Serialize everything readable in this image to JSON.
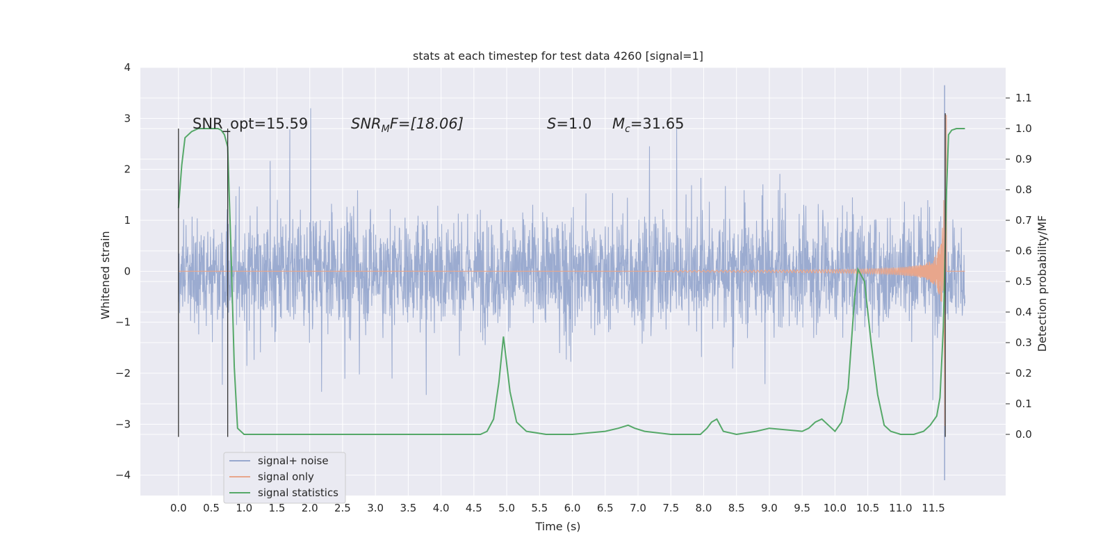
{
  "chart_data": {
    "type": "line",
    "title": "stats at each timestep for test data 4260 [signal=1]",
    "xlabel": "Time (s)",
    "ylabel": "Whitened strain",
    "ylabel_right": "Detection probability/MF",
    "xlim": [
      -0.58,
      12.6
    ],
    "ylim": [
      -4.4,
      4.0
    ],
    "ylim_right": [
      -0.2,
      1.2
    ],
    "x_ticks": [
      "0.0",
      "0.5",
      "1.0",
      "1.5",
      "2.0",
      "2.5",
      "3.0",
      "3.5",
      "4.0",
      "4.5",
      "5.0",
      "5.5",
      "6.0",
      "6.5",
      "7.0",
      "7.5",
      "8.0",
      "8.5",
      "9.0",
      "9.5",
      "10.0",
      "10.5",
      "11.0",
      "11.5"
    ],
    "y_ticks": [
      "-4",
      "-3",
      "-2",
      "-1",
      "0",
      "1",
      "2",
      "3",
      "4"
    ],
    "y_ticks_right": [
      "0.0",
      "0.1",
      "0.2",
      "0.3",
      "0.4",
      "0.5",
      "0.6",
      "0.7",
      "0.8",
      "0.9",
      "1.0",
      "1.1"
    ],
    "grid": true,
    "annotations": {
      "snr_opt": "SNR_opt=15.59",
      "snr_mf_label": "SNR",
      "snr_mf_sub": "M",
      "snr_mf_value": "F=[18.06]",
      "s_label": "S",
      "s_value": "=1.0",
      "mc_label": "M",
      "mc_sub": "c",
      "mc_value": "=31.65"
    },
    "legend": {
      "position": "lower-left",
      "entries": [
        "signal+ noise",
        "signal only",
        "signal statistics"
      ]
    },
    "series": [
      {
        "name": "signal+ noise",
        "axis": "left",
        "description_kind": "noise-band",
        "envelope_upper": 1.6,
        "envelope_lower": -1.6,
        "peak_upper": 3.65,
        "peak_lower": -4.1,
        "x_range": [
          0.0,
          11.98
        ]
      },
      {
        "name": "signal only",
        "axis": "left",
        "chirp_start": 7.5,
        "merger_time": 11.68,
        "peak_amplitude": 3.15,
        "x_range": [
          0.0,
          11.98
        ]
      },
      {
        "name": "signal statistics",
        "axis": "right",
        "x": [
          0.0,
          0.05,
          0.1,
          0.2,
          0.3,
          0.4,
          0.5,
          0.6,
          0.65,
          0.7,
          0.75,
          0.8,
          0.85,
          0.9,
          1.0,
          1.3,
          1.7,
          2.0,
          2.5,
          3.0,
          3.5,
          4.0,
          4.5,
          4.6,
          4.7,
          4.8,
          4.88,
          4.95,
          5.05,
          5.15,
          5.3,
          5.6,
          6.0,
          6.5,
          6.7,
          6.85,
          6.95,
          7.1,
          7.5,
          7.95,
          8.05,
          8.12,
          8.2,
          8.3,
          8.5,
          8.8,
          9.0,
          9.5,
          9.6,
          9.7,
          9.8,
          9.9,
          10.0,
          10.1,
          10.2,
          10.3,
          10.35,
          10.45,
          10.55,
          10.65,
          10.75,
          10.85,
          11.0,
          11.2,
          11.35,
          11.45,
          11.55,
          11.6,
          11.65,
          11.7,
          11.73,
          11.78,
          11.85,
          11.98
        ],
        "y": [
          0.74,
          0.88,
          0.97,
          0.99,
          1.0,
          1.0,
          1.0,
          1.0,
          0.995,
          0.98,
          0.94,
          0.6,
          0.22,
          0.02,
          0.0,
          0.0,
          0.0,
          0.0,
          0.0,
          0.0,
          0.0,
          0.0,
          0.0,
          0.0,
          0.01,
          0.05,
          0.17,
          0.32,
          0.14,
          0.04,
          0.01,
          0.0,
          0.0,
          0.01,
          0.02,
          0.03,
          0.02,
          0.01,
          0.0,
          0.0,
          0.02,
          0.04,
          0.05,
          0.01,
          0.0,
          0.01,
          0.02,
          0.01,
          0.02,
          0.04,
          0.05,
          0.03,
          0.01,
          0.04,
          0.15,
          0.45,
          0.54,
          0.5,
          0.3,
          0.13,
          0.03,
          0.01,
          0.0,
          0.0,
          0.01,
          0.03,
          0.06,
          0.12,
          0.35,
          0.8,
          0.98,
          0.995,
          1.0,
          1.0
        ]
      }
    ],
    "vertical_markers": [
      {
        "x": 0.0,
        "y_range": [
          -3.25,
          2.8
        ]
      },
      {
        "x": 0.75,
        "y_range": [
          -3.25,
          2.8
        ]
      },
      {
        "x": 11.68,
        "y_range": [
          -3.25,
          3.1
        ]
      }
    ],
    "colors": {
      "background": "#eaeaf2",
      "grid": "#ffffff",
      "noise": "#97a8ce",
      "signal": "#e8a68c",
      "stats": "#55a868",
      "marker": "#333333"
    }
  }
}
